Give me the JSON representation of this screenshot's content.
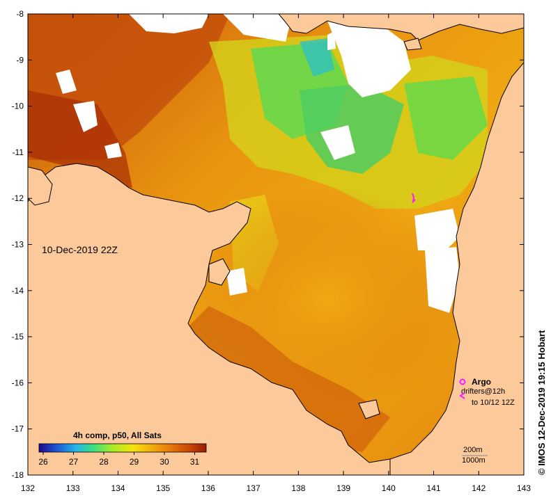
{
  "map": {
    "date_label": "10-Dec-2019 22Z",
    "longitudes": [
      "132",
      "133",
      "134",
      "135",
      "136",
      "137",
      "138",
      "139",
      "140",
      "141",
      "142",
      "143"
    ],
    "latitudes": [
      "-8",
      "-9",
      "-10",
      "-11",
      "-12",
      "-13",
      "-14",
      "-15",
      "-16",
      "-17",
      "-18"
    ],
    "land_color": "#fcc99b",
    "cloud_color": "#ffffff",
    "coast_color": "#000000"
  },
  "colorbar": {
    "title": "4h comp, p50, All Sats",
    "labels": [
      "26",
      "27",
      "28",
      "29",
      "30",
      "31"
    ],
    "colors": [
      "#1a0a8c",
      "#1f5ad6",
      "#25b4e8",
      "#3fe07a",
      "#a9ec2a",
      "#f2e40c",
      "#f3b00a",
      "#e87a0a",
      "#cc4a06",
      "#9a1e04"
    ]
  },
  "legend": {
    "argo": "Argo",
    "drifters": "drifters@12h",
    "drifters_range": "to 10/12 12Z",
    "contour_200": "200m",
    "contour_1000": "1000m",
    "marker_color": "#ff19ff"
  },
  "credit": "© IMOS 12-Dec-2019 19:15 Hobart"
}
